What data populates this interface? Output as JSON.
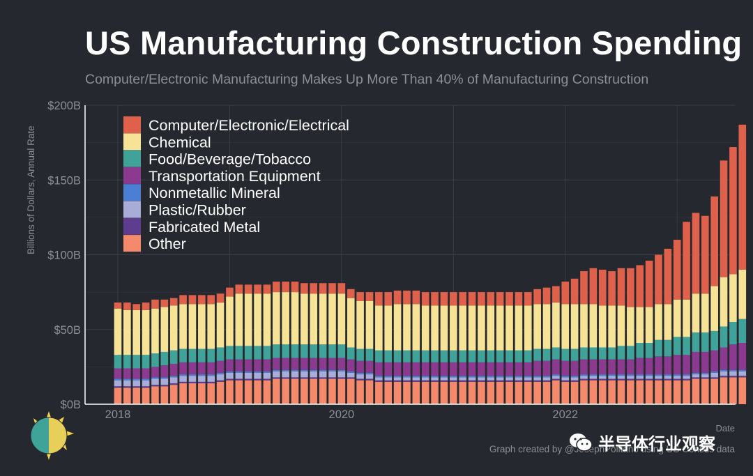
{
  "title": "US Manufacturing Construction Spending",
  "subtitle": "Computer/Electronic Manufacturing Makes Up More Than 40% of Manufacturing Construction",
  "footer": {
    "date_label": "Date",
    "credit": "Graph created by @JosephPolitano using US Census data",
    "watermark": "半导体行业观察"
  },
  "colors": {
    "background": "#25282e",
    "grid": "#3a3d44",
    "axis": "#ffffff",
    "muted_text": "#8d9096"
  },
  "icons": [
    "sun-logo-icon",
    "wechat-icon"
  ],
  "chart_data": {
    "type": "bar",
    "stacked": true,
    "title": "US Manufacturing Construction Spending",
    "xlabel": "Date",
    "ylabel": "Billions of Dollars, Annual Rate",
    "ylim": [
      0,
      200
    ],
    "y_ticks": [
      {
        "value": 0,
        "label": "$0B"
      },
      {
        "value": 50,
        "label": "$50B"
      },
      {
        "value": 100,
        "label": "$100B"
      },
      {
        "value": 150,
        "label": "$150B"
      },
      {
        "value": 200,
        "label": "$200B"
      }
    ],
    "x_ticks": [
      {
        "index": 0,
        "label": "2018"
      },
      {
        "index": 24,
        "label": "2020"
      },
      {
        "index": 48,
        "label": "2022"
      }
    ],
    "legend_position": "top-left",
    "series": [
      {
        "name": "Other",
        "color": "#f4896b",
        "values": [
          11,
          11,
          11,
          11,
          12,
          12,
          13,
          14,
          14,
          14,
          14,
          15,
          16,
          16,
          16,
          16,
          16,
          17,
          17,
          17,
          17,
          17,
          17,
          17,
          17,
          17,
          16,
          16,
          15,
          15,
          15,
          15,
          15,
          15,
          15,
          15,
          15,
          15,
          15,
          15,
          15,
          15,
          15,
          15,
          15,
          15,
          15,
          16,
          15,
          15,
          16,
          16,
          16,
          16,
          16,
          16,
          16,
          16,
          16,
          16,
          16,
          16,
          17,
          17,
          17,
          18,
          18,
          18
        ]
      },
      {
        "name": "Fabricated Metal",
        "color": "#5e3c8f",
        "values": [
          1,
          1,
          1,
          1,
          1,
          1,
          1,
          1,
          1,
          1,
          1,
          1,
          1,
          1,
          1,
          1,
          1,
          1,
          1,
          1,
          1,
          1,
          1,
          1,
          1,
          1,
          1,
          1,
          1,
          1,
          1,
          1,
          1,
          1,
          1,
          1,
          1,
          1,
          1,
          1,
          1,
          1,
          1,
          1,
          1,
          1,
          1,
          1,
          1,
          1,
          1,
          1,
          1,
          1,
          1,
          1,
          1,
          1,
          1,
          1,
          1,
          1,
          1,
          1,
          1,
          1,
          1,
          1
        ]
      },
      {
        "name": "Plastic/Rubber",
        "color": "#a9acd6",
        "values": [
          4,
          4,
          4,
          4,
          4,
          4,
          4,
          4,
          4,
          4,
          4,
          4,
          4,
          4,
          4,
          4,
          4,
          4,
          4,
          4,
          4,
          4,
          4,
          4,
          4,
          3,
          3,
          3,
          2,
          2,
          2,
          2,
          2,
          2,
          2,
          2,
          2,
          2,
          2,
          2,
          2,
          2,
          2,
          2,
          2,
          2,
          2,
          2,
          2,
          2,
          2,
          2,
          2,
          2,
          2,
          2,
          2,
          2,
          2,
          2,
          2,
          2,
          2,
          2,
          3,
          3,
          3,
          3
        ]
      },
      {
        "name": "Nonmetallic Mineral",
        "color": "#4a7fd4",
        "values": [
          1,
          1,
          1,
          1,
          1,
          1,
          1,
          1,
          1,
          1,
          1,
          1,
          1,
          1,
          1,
          1,
          1,
          1,
          1,
          1,
          1,
          1,
          1,
          1,
          1,
          1,
          1,
          1,
          1,
          1,
          1,
          1,
          1,
          1,
          1,
          1,
          1,
          1,
          1,
          1,
          1,
          1,
          1,
          1,
          1,
          1,
          1,
          1,
          1,
          1,
          1,
          1,
          1,
          1,
          1,
          1,
          1,
          1,
          1,
          1,
          1,
          1,
          1,
          1,
          1,
          1,
          1,
          1
        ]
      },
      {
        "name": "Transportation Equipment",
        "color": "#8b3a8f",
        "values": [
          7,
          7,
          7,
          7,
          7,
          8,
          8,
          8,
          8,
          8,
          8,
          8,
          8,
          8,
          8,
          8,
          8,
          8,
          8,
          8,
          8,
          8,
          8,
          8,
          8,
          8,
          8,
          8,
          9,
          9,
          9,
          9,
          9,
          9,
          9,
          9,
          9,
          9,
          9,
          9,
          9,
          9,
          9,
          9,
          9,
          10,
          10,
          10,
          10,
          10,
          10,
          10,
          10,
          10,
          10,
          10,
          11,
          11,
          12,
          12,
          13,
          13,
          14,
          14,
          14,
          15,
          17,
          18
        ]
      },
      {
        "name": "Food/Beverage/Tobacco",
        "color": "#3fa39a",
        "values": [
          9,
          9,
          9,
          9,
          9,
          9,
          9,
          9,
          9,
          9,
          9,
          9,
          9,
          9,
          9,
          9,
          9,
          9,
          9,
          9,
          9,
          9,
          9,
          9,
          9,
          8,
          8,
          8,
          8,
          8,
          8,
          8,
          8,
          8,
          8,
          8,
          8,
          8,
          8,
          8,
          8,
          8,
          8,
          8,
          8,
          8,
          8,
          8,
          8,
          8,
          8,
          8,
          8,
          8,
          9,
          9,
          10,
          10,
          11,
          11,
          12,
          12,
          13,
          13,
          13,
          14,
          15,
          16
        ]
      },
      {
        "name": "Chemical",
        "color": "#f7e395",
        "values": [
          31,
          30,
          30,
          30,
          30,
          30,
          30,
          30,
          30,
          30,
          30,
          30,
          33,
          35,
          35,
          35,
          35,
          35,
          35,
          35,
          34,
          34,
          34,
          34,
          34,
          33,
          32,
          32,
          30,
          30,
          31,
          31,
          31,
          30,
          30,
          30,
          30,
          30,
          30,
          30,
          30,
          30,
          30,
          30,
          30,
          30,
          30,
          30,
          30,
          30,
          29,
          29,
          28,
          28,
          27,
          26,
          24,
          24,
          24,
          24,
          25,
          25,
          26,
          26,
          30,
          33,
          32,
          33
        ]
      },
      {
        "name": "Computer/Electronic/Electrical",
        "color": "#e0614b",
        "values": [
          4,
          5,
          4,
          5,
          6,
          5,
          5,
          6,
          6,
          6,
          6,
          6,
          6,
          6,
          6,
          6,
          6,
          7,
          7,
          7,
          7,
          7,
          7,
          7,
          7,
          6,
          6,
          6,
          9,
          9,
          9,
          9,
          9,
          9,
          9,
          9,
          9,
          9,
          9,
          9,
          9,
          9,
          9,
          9,
          9,
          10,
          11,
          11,
          15,
          17,
          22,
          24,
          24,
          23,
          25,
          26,
          28,
          31,
          33,
          37,
          40,
          52,
          54,
          52,
          60,
          78,
          85,
          97
        ]
      }
    ]
  }
}
